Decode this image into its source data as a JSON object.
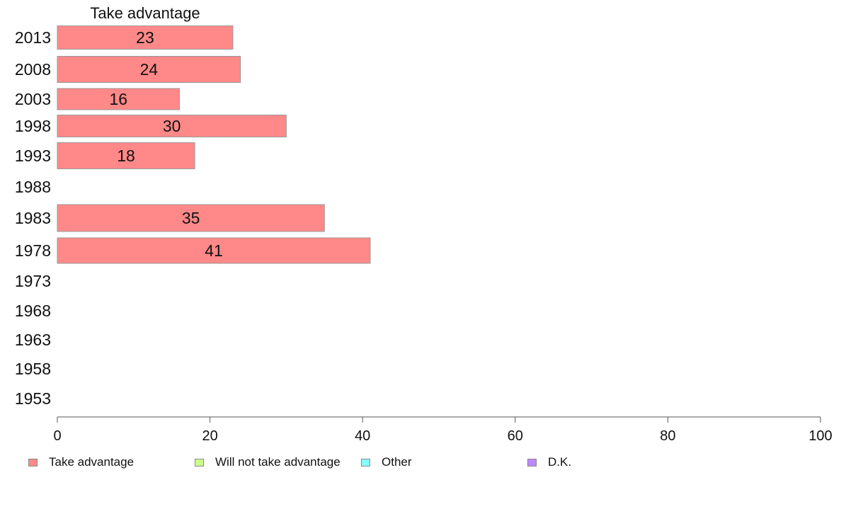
{
  "chart_data": {
    "type": "bar",
    "orientation": "horizontal",
    "title": "Take advantage",
    "categories": [
      "2013",
      "2008",
      "2003",
      "1998",
      "1993",
      "1988",
      "1983",
      "1978",
      "1973",
      "1968",
      "1963",
      "1958",
      "1953"
    ],
    "series": [
      {
        "name": "Take advantage",
        "values": [
          23,
          24,
          16,
          30,
          18,
          null,
          35,
          41,
          null,
          null,
          null,
          null,
          null
        ],
        "color": "#ff8888"
      }
    ],
    "xlim": [
      0,
      100
    ],
    "xticks": [
      0,
      20,
      40,
      60,
      80,
      100
    ],
    "grid": false,
    "legend_position": "bottom",
    "legend": [
      {
        "label": "Take advantage",
        "color": "#ff8888"
      },
      {
        "label": "Will not take advantage",
        "color": "#ccff88"
      },
      {
        "label": "Other",
        "color": "#88ffff"
      },
      {
        "label": "D.K.",
        "color": "#bb88ff"
      }
    ]
  }
}
